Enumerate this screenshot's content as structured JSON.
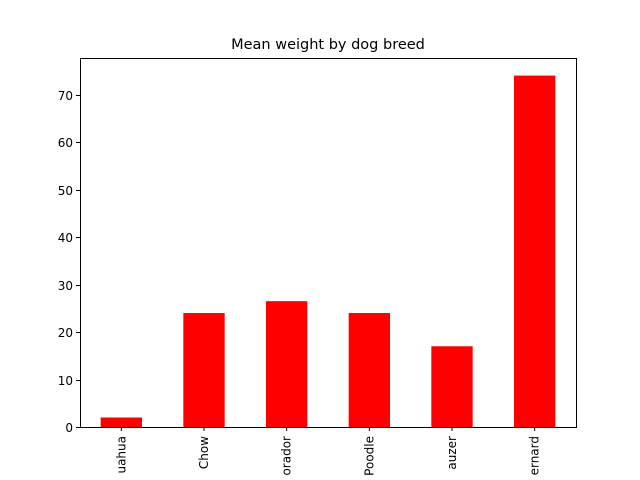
{
  "chart_data": {
    "type": "bar",
    "title": "Mean weight by dog breed",
    "xlabel": "",
    "ylabel": "",
    "categories": [
      "uahua",
      "Chow",
      "orador",
      "Poodle",
      "auzer",
      "ernard"
    ],
    "values": [
      2,
      24,
      26.5,
      24,
      17,
      74
    ],
    "ylim": [
      0,
      77.7
    ],
    "yticks": [
      0,
      10,
      20,
      30,
      40,
      50,
      60,
      70
    ],
    "grid": false,
    "legend": "none",
    "colors": {
      "bar": "#ff0000",
      "axis": "#000000",
      "background": "#ffffff"
    }
  }
}
